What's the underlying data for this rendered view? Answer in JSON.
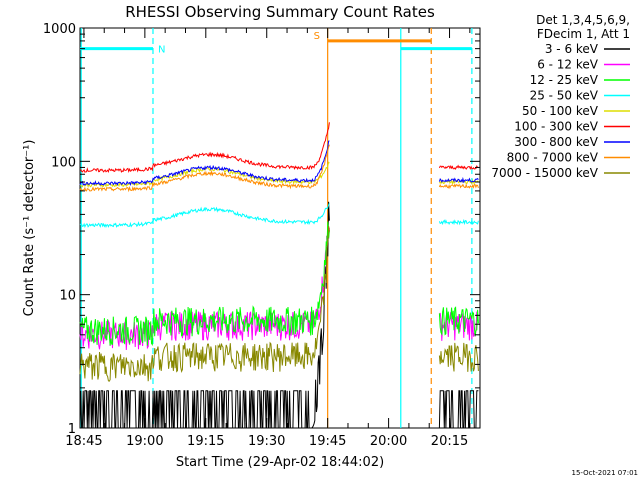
{
  "chart_data": {
    "type": "line",
    "title": "RHESSI Observing Summary Count Rates",
    "xlabel": "Start Time (29-Apr-02 18:44:02)",
    "ylabel": "Count Rate (s⁻¹ detector⁻¹)",
    "y_scale": "log",
    "ylim": [
      1,
      1000
    ],
    "xlim": [
      "18:44:02",
      "20:22:30"
    ],
    "x_ticks": [
      "18:45",
      "19:00",
      "19:15",
      "19:30",
      "19:45",
      "20:00",
      "20:15"
    ],
    "y_ticks": [
      "1",
      "10",
      "100",
      "1000"
    ],
    "legend_header": [
      "Det 1,3,4,5,6,9,",
      "FDecim 1, Att 1"
    ],
    "legend_position": "top-right outside",
    "series": [
      {
        "name": "3 - 6 keV",
        "color": "#000000",
        "pattern": "flat",
        "base": 1.0,
        "peak": 40
      },
      {
        "name": "6 - 12 keV",
        "color": "#ff00ff",
        "pattern": "flat",
        "base": 6.0,
        "peak": 40
      },
      {
        "name": "12 - 25 keV",
        "color": "#00ff00",
        "pattern": "flat",
        "base": 6.5,
        "peak": 42
      },
      {
        "name": "25 - 50 keV",
        "color": "#00ffff",
        "pattern": "bump",
        "base": 35,
        "peak": 50
      },
      {
        "name": "50 - 100 keV",
        "color": "#dddd00",
        "pattern": "bump",
        "base": 70,
        "peak": 100
      },
      {
        "name": "100 - 300 keV",
        "color": "#ff0000",
        "pattern": "bump",
        "base": 90,
        "peak": 200
      },
      {
        "name": "300 - 800 keV",
        "color": "#0000ff",
        "pattern": "bump",
        "base": 72,
        "peak": 150
      },
      {
        "name": "800 - 7000 keV",
        "color": "#ff8c00",
        "pattern": "bump",
        "base": 65,
        "peak": 140
      },
      {
        "name": "7000 - 15000 keV",
        "color": "#888800",
        "pattern": "flat",
        "base": 3.5,
        "peak": 35
      }
    ],
    "gap": [
      "19:45:30",
      "20:12:30"
    ],
    "annotations": [
      {
        "label": "N",
        "color": "#00ffff",
        "bar": [
          "18:44:02",
          "19:02:00"
        ],
        "line_at": "19:02:00",
        "level": 700
      },
      {
        "label": "S",
        "color": "#ff8c00",
        "bar": [
          "19:45:00",
          "20:10:30"
        ],
        "line_at": "19:45:00",
        "level": 800
      },
      {
        "label": "",
        "color": "#00ffff",
        "bar": [
          "20:03:00",
          "20:20:30"
        ],
        "line_at": "20:03:00",
        "level": 700
      }
    ],
    "vlines": [
      {
        "at": "18:44:20",
        "color": "#00ffff",
        "style": "solid"
      },
      {
        "at": "19:02:00",
        "color": "#00ffff",
        "style": "dashed"
      },
      {
        "at": "19:45:00",
        "color": "#ff8c00",
        "style": "solid"
      },
      {
        "at": "20:03:00",
        "color": "#00ffff",
        "style": "solid"
      },
      {
        "at": "20:10:30",
        "color": "#ff8c00",
        "style": "dashed"
      },
      {
        "at": "20:20:30",
        "color": "#00ffff",
        "style": "dashed"
      }
    ],
    "timestamp": "15-Oct-2021 07:01"
  }
}
